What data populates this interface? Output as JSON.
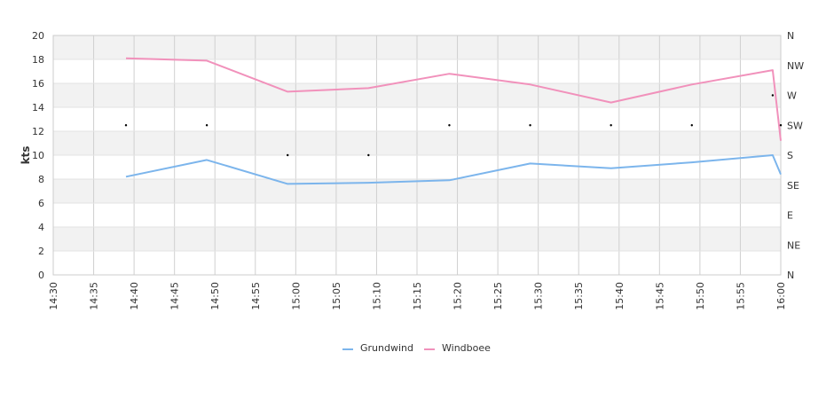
{
  "chart_data": {
    "type": "line",
    "ylabel": "kts",
    "ylim": [
      0,
      20
    ],
    "y_ticks": [
      "0",
      "2",
      "4",
      "6",
      "8",
      "10",
      "12",
      "14",
      "16",
      "18",
      "20"
    ],
    "x_range": [
      "14:30",
      "16:00"
    ],
    "x_ticks": [
      "14:30",
      "14:35",
      "14:40",
      "14:45",
      "14:50",
      "14:55",
      "15:00",
      "15:05",
      "15:10",
      "15:15",
      "15:20",
      "15:25",
      "15:30",
      "15:35",
      "15:40",
      "15:45",
      "15:50",
      "15:55",
      "16:00"
    ],
    "y2_ticks": [
      "N",
      "NE",
      "E",
      "SE",
      "S",
      "SW",
      "W",
      "NW",
      "N"
    ],
    "grid": true,
    "legend_position": "bottom-center",
    "colors": {
      "Grundwind": "#7cb5ec",
      "Windboee": "#f191bb",
      "direction": "#000000"
    },
    "series": [
      {
        "name": "Grundwind",
        "x": [
          "14:39",
          "14:49",
          "14:59",
          "15:09",
          "15:19",
          "15:29",
          "15:39",
          "15:49",
          "15:59",
          "16:00"
        ],
        "values": [
          8.2,
          9.6,
          7.6,
          7.7,
          7.9,
          9.3,
          8.9,
          9.4,
          10.0,
          8.4
        ]
      },
      {
        "name": "Windboee",
        "x": [
          "14:39",
          "14:49",
          "14:59",
          "15:09",
          "15:19",
          "15:29",
          "15:39",
          "15:49",
          "15:59",
          "16:00"
        ],
        "values": [
          18.1,
          17.9,
          15.3,
          15.6,
          16.8,
          15.9,
          14.4,
          15.9,
          17.1,
          11.2
        ]
      }
    ],
    "direction_points": {
      "x": [
        "14:39",
        "14:49",
        "14:59",
        "15:09",
        "15:19",
        "15:29",
        "15:39",
        "15:49",
        "15:59",
        "16:00"
      ],
      "values": [
        "SW",
        "SW",
        "S",
        "S",
        "SW",
        "SW",
        "SW",
        "SW",
        "W",
        "SW"
      ]
    }
  }
}
